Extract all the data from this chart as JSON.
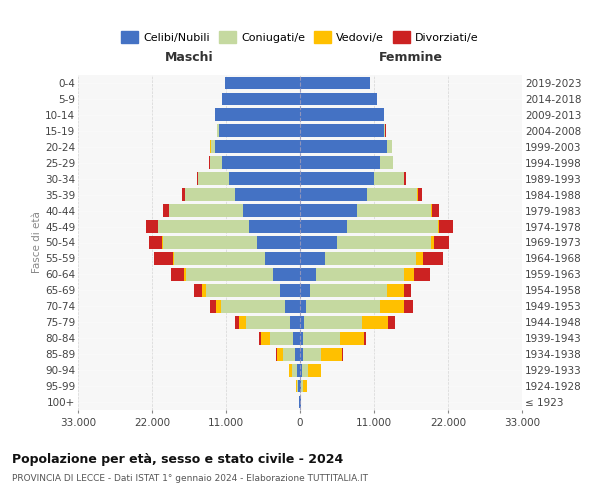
{
  "age_groups": [
    "100+",
    "95-99",
    "90-94",
    "85-89",
    "80-84",
    "75-79",
    "70-74",
    "65-69",
    "60-64",
    "55-59",
    "50-54",
    "45-49",
    "40-44",
    "35-39",
    "30-34",
    "25-29",
    "20-24",
    "15-19",
    "10-14",
    "5-9",
    "0-4"
  ],
  "birth_years": [
    "≤ 1923",
    "1924-1928",
    "1929-1933",
    "1934-1938",
    "1939-1943",
    "1944-1948",
    "1949-1953",
    "1954-1958",
    "1959-1963",
    "1964-1968",
    "1969-1973",
    "1974-1978",
    "1979-1983",
    "1984-1988",
    "1989-1993",
    "1994-1998",
    "1999-2003",
    "2004-2008",
    "2009-2013",
    "2014-2018",
    "2019-2023"
  ],
  "colors": {
    "celibi": "#4472c4",
    "coniugati": "#c5d9a0",
    "vedovi": "#ffc000",
    "divorziati": "#cc2222"
  },
  "maschi": {
    "celibi": [
      100,
      250,
      500,
      700,
      1000,
      1500,
      2200,
      3000,
      4000,
      5200,
      6400,
      7600,
      8400,
      9600,
      10600,
      11600,
      12600,
      12100,
      12600,
      11600,
      11100
    ],
    "coniugati": [
      50,
      200,
      700,
      1800,
      3500,
      6500,
      9500,
      11000,
      13000,
      13500,
      14000,
      13500,
      11000,
      7500,
      4500,
      1800,
      700,
      250,
      70,
      25,
      12
    ],
    "vedovi": [
      20,
      100,
      400,
      900,
      1300,
      1100,
      800,
      500,
      250,
      150,
      100,
      60,
      35,
      25,
      18,
      12,
      6,
      3,
      2,
      1,
      1
    ],
    "divorziati": [
      5,
      25,
      60,
      120,
      250,
      600,
      900,
      1300,
      2000,
      2800,
      2000,
      1700,
      900,
      450,
      220,
      110,
      55,
      22,
      10,
      5,
      2
    ]
  },
  "femmine": {
    "celibi": [
      80,
      180,
      350,
      380,
      460,
      650,
      950,
      1450,
      2450,
      3750,
      5450,
      6950,
      8450,
      9950,
      10950,
      11950,
      12950,
      12450,
      12450,
      11450,
      10450
    ],
    "coniugati": [
      30,
      200,
      900,
      2800,
      5500,
      8500,
      11000,
      11500,
      13000,
      13500,
      14000,
      13500,
      11000,
      7500,
      4500,
      1800,
      700,
      250,
      70,
      25,
      12
    ],
    "vedovi": [
      100,
      600,
      1800,
      3000,
      3500,
      4000,
      3500,
      2500,
      1500,
      1000,
      500,
      250,
      130,
      65,
      35,
      22,
      12,
      6,
      3,
      1,
      1
    ],
    "divorziati": [
      5,
      25,
      70,
      170,
      350,
      900,
      1300,
      1100,
      2400,
      3000,
      2200,
      2000,
      1100,
      550,
      220,
      110,
      55,
      22,
      10,
      5,
      2
    ]
  },
  "xlim": 33000,
  "xtick_vals": [
    -33000,
    -22000,
    -11000,
    0,
    11000,
    22000,
    33000
  ],
  "xtick_labels": [
    "33.000",
    "22.000",
    "11.000",
    "0",
    "11.000",
    "22.000",
    "33.000"
  ],
  "title1": "Popolazione per età, sesso e stato civile - 2024",
  "title2": "PROVINCIA DI LECCE - Dati ISTAT 1° gennaio 2024 - Elaborazione TUTTITALIA.IT",
  "ylabel_left": "Fasce di età",
  "label_maschi": "Maschi",
  "label_femmine": "Femmine",
  "legend_labels": [
    "Celibi/Nubili",
    "Coniugati/e",
    "Vedovi/e",
    "Divorziati/e"
  ],
  "bg_color": "#f7f7f7",
  "grid_color": "#cccccc"
}
